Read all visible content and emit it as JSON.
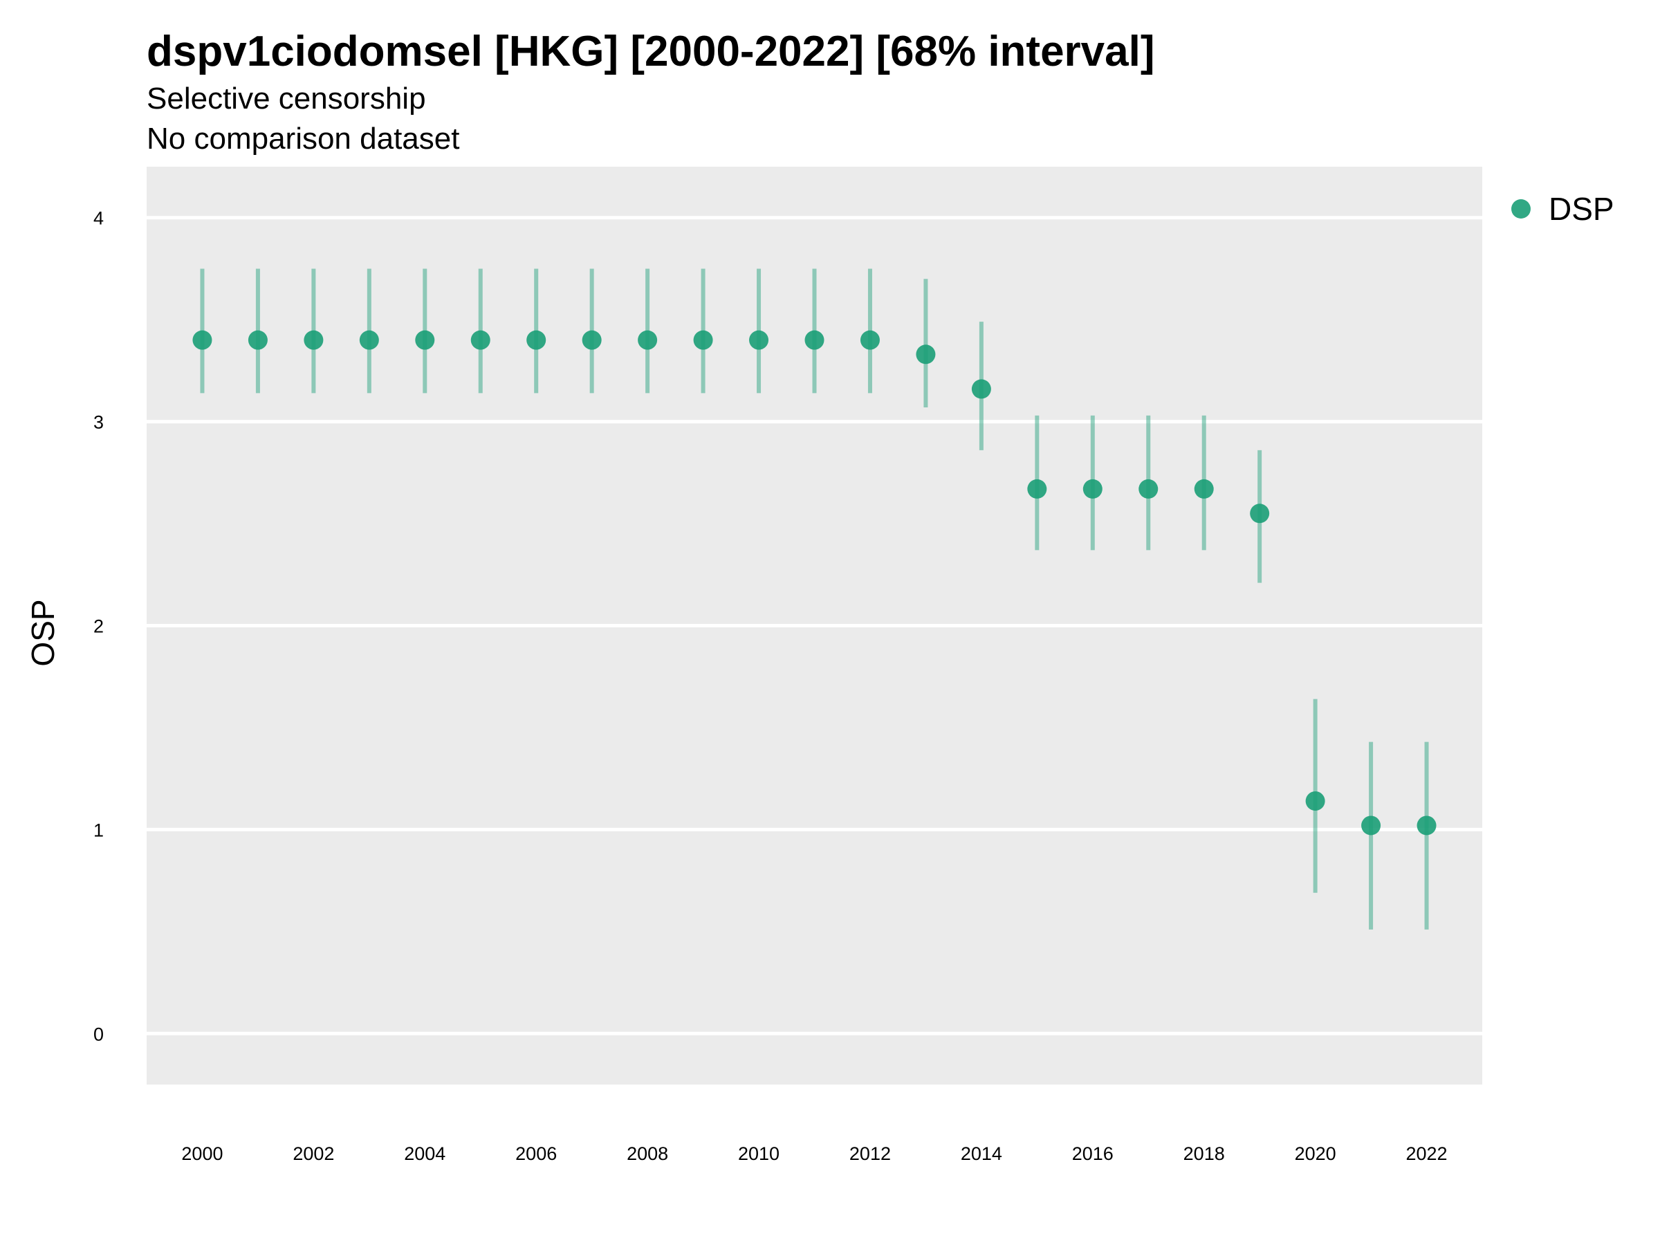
{
  "chart_data": {
    "type": "scatter",
    "title": "dspv1ciodomsel [HKG] [2000-2022] [68% interval]",
    "subtitle": "Selective censorship",
    "subtitle2": "No comparison dataset",
    "xlabel": "",
    "ylabel": "OSP",
    "xlim": [
      1999,
      2023
    ],
    "ylim": [
      -0.25,
      4.25
    ],
    "x_ticks": [
      2000,
      2002,
      2004,
      2006,
      2008,
      2010,
      2012,
      2014,
      2016,
      2018,
      2020,
      2022
    ],
    "y_ticks": [
      0,
      1,
      2,
      3,
      4
    ],
    "grid": true,
    "legend": "right",
    "colors": {
      "point": "#1b9e77",
      "panel": "#ebebeb",
      "grid": "#ffffff"
    },
    "series": [
      {
        "name": "DSP",
        "x": [
          2000,
          2001,
          2002,
          2003,
          2004,
          2005,
          2006,
          2007,
          2008,
          2009,
          2010,
          2011,
          2012,
          2013,
          2014,
          2015,
          2016,
          2017,
          2018,
          2019,
          2020,
          2021,
          2022
        ],
        "y": [
          3.4,
          3.4,
          3.4,
          3.4,
          3.4,
          3.4,
          3.4,
          3.4,
          3.4,
          3.4,
          3.4,
          3.4,
          3.4,
          3.33,
          3.16,
          2.67,
          2.67,
          2.67,
          2.67,
          2.55,
          1.14,
          1.02,
          1.02
        ],
        "lower": [
          3.14,
          3.14,
          3.14,
          3.14,
          3.14,
          3.14,
          3.14,
          3.14,
          3.14,
          3.14,
          3.14,
          3.14,
          3.14,
          3.07,
          2.86,
          2.37,
          2.37,
          2.37,
          2.37,
          2.21,
          0.69,
          0.51,
          0.51
        ],
        "upper": [
          3.75,
          3.75,
          3.75,
          3.75,
          3.75,
          3.75,
          3.75,
          3.75,
          3.75,
          3.75,
          3.75,
          3.75,
          3.75,
          3.7,
          3.49,
          3.03,
          3.03,
          3.03,
          3.03,
          2.86,
          1.64,
          1.43,
          1.43
        ]
      }
    ]
  }
}
